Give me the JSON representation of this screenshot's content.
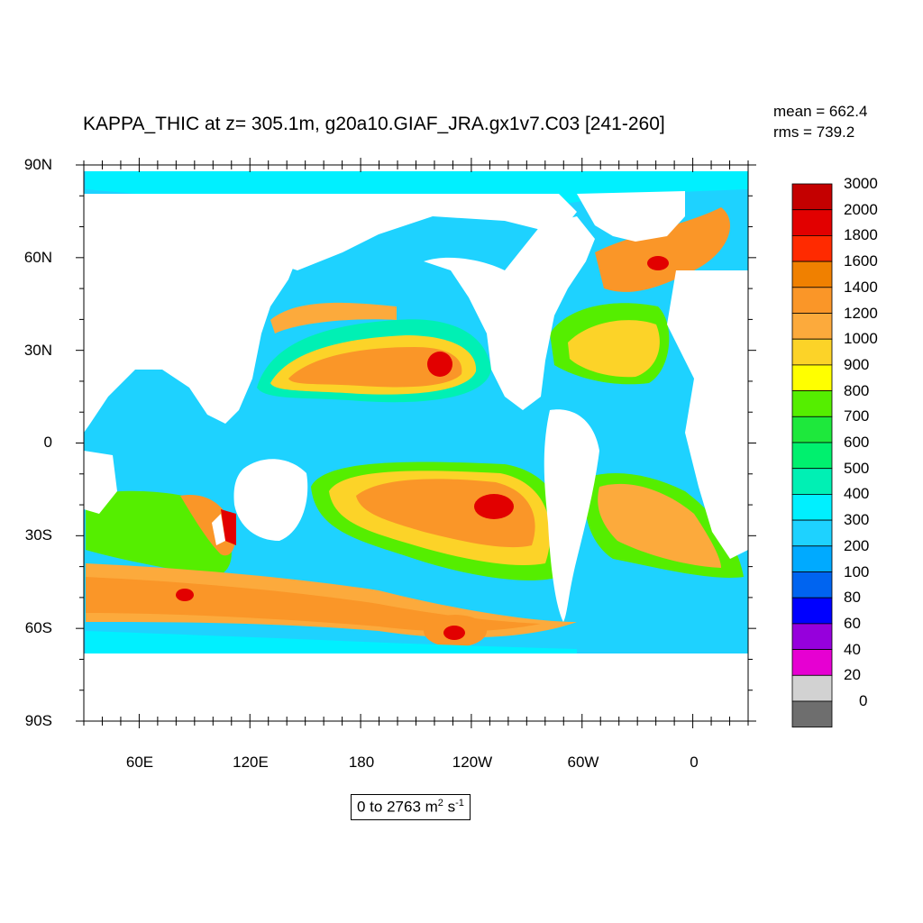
{
  "title": "KAPPA_THIC at z= 305.1m, g20a10.GIAF_JRA.gx1v7.C03 [241-260]",
  "stats": {
    "mean": "mean = 662.4",
    "rms": "rms = 739.2"
  },
  "lat_labels": [
    "90N",
    "60N",
    "30N",
    "0",
    "30S",
    "60S",
    "90S"
  ],
  "lon_labels": [
    "60E",
    "120E",
    "180",
    "120W",
    "60W",
    "0"
  ],
  "range": {
    "prefix": "0 to 2763 m",
    "sq": "2",
    "mid": " s",
    "inv": "-1"
  },
  "colorbar": {
    "labels": [
      "3000",
      "2000",
      "1800",
      "1600",
      "1400",
      "1200",
      "1000",
      "900",
      "800",
      "700",
      "600",
      "500",
      "400",
      "300",
      "200",
      "100",
      "80",
      "60",
      "40",
      "20",
      "0"
    ],
    "colors": [
      "#c40000",
      "#e20000",
      "#ff2a00",
      "#f08000",
      "#fa9628",
      "#fcaa3c",
      "#fcd328",
      "#ffff00",
      "#55ee00",
      "#1ee83c",
      "#00f06e",
      "#00f0b4",
      "#00f0ff",
      "#1ed2ff",
      "#00aaff",
      "#0064f0",
      "#0000ff",
      "#9600dc",
      "#e600d2",
      "#d2d2d2",
      "#6e6e6e"
    ]
  },
  "ocean_colors": {
    "default": "#1ed2ff",
    "subtropical": "#fa9628",
    "core": "#e20000",
    "land": "#ffffff"
  }
}
